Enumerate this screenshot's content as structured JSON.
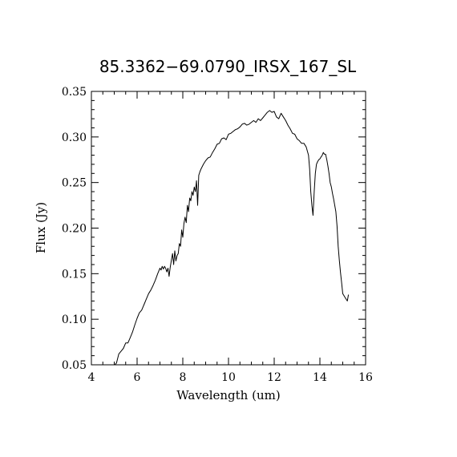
{
  "chart_data": {
    "type": "line",
    "title": "85.3362−69.0790_IRSX_167_SL",
    "xlabel": "Wavelength (um)",
    "ylabel": "Flux (Jy)",
    "xlim": [
      4,
      16
    ],
    "ylim": [
      0.05,
      0.35
    ],
    "xticks": [
      4,
      6,
      8,
      10,
      12,
      14,
      16
    ],
    "xtick_labels": [
      "4",
      "6",
      "8",
      "10",
      "12",
      "14",
      "16"
    ],
    "yticks": [
      0.05,
      0.1,
      0.15,
      0.2,
      0.25,
      0.3,
      0.35
    ],
    "ytick_labels": [
      "0.05",
      "0.10",
      "0.15",
      "0.20",
      "0.25",
      "0.30",
      "0.35"
    ],
    "grid": false,
    "line_color": "#000000",
    "series": [
      {
        "x": [
          5.03,
          5.1,
          5.2,
          5.3,
          5.4,
          5.5,
          5.6,
          5.7,
          5.8,
          5.9,
          6.0,
          6.1,
          6.2,
          6.3,
          6.4,
          6.5,
          6.6,
          6.7,
          6.8,
          6.9,
          7.0,
          7.05,
          7.1,
          7.15,
          7.2,
          7.25,
          7.3,
          7.35,
          7.4,
          7.45,
          7.5,
          7.55,
          7.6,
          7.65,
          7.7,
          7.75,
          7.8,
          7.85,
          7.9,
          7.95,
          8.0,
          8.05,
          8.1,
          8.15,
          8.2,
          8.25,
          8.3,
          8.35,
          8.4,
          8.45,
          8.5,
          8.55,
          8.6,
          8.65,
          8.7,
          8.75,
          8.8,
          8.9,
          9.0,
          9.1,
          9.2,
          9.3,
          9.4,
          9.5,
          9.6,
          9.7,
          9.8,
          9.9,
          10.0,
          10.1,
          10.2,
          10.3,
          10.4,
          10.5,
          10.6,
          10.7,
          10.8,
          10.9,
          11.0,
          11.1,
          11.2,
          11.3,
          11.4,
          11.5,
          11.6,
          11.7,
          11.8,
          11.9,
          12.0,
          12.1,
          12.2,
          12.3,
          12.4,
          12.5,
          12.6,
          12.7,
          12.8,
          12.9,
          13.0,
          13.1,
          13.2,
          13.3,
          13.4,
          13.5,
          13.55,
          13.6,
          13.65,
          13.7,
          13.75,
          13.8,
          13.85,
          13.9,
          13.95,
          14.0,
          14.05,
          14.1,
          14.15,
          14.2,
          14.25,
          14.3,
          14.35,
          14.4,
          14.45,
          14.5,
          14.55,
          14.6,
          14.65,
          14.7,
          14.75,
          14.8,
          14.85,
          14.9,
          14.95,
          15.0,
          15.1,
          15.2,
          15.25
        ],
        "y": [
          0.05,
          0.052,
          0.062,
          0.065,
          0.068,
          0.074,
          0.074,
          0.08,
          0.086,
          0.094,
          0.101,
          0.107,
          0.11,
          0.116,
          0.122,
          0.128,
          0.132,
          0.137,
          0.143,
          0.15,
          0.156,
          0.154,
          0.158,
          0.155,
          0.158,
          0.156,
          0.152,
          0.156,
          0.147,
          0.157,
          0.165,
          0.172,
          0.16,
          0.175,
          0.164,
          0.17,
          0.172,
          0.183,
          0.18,
          0.198,
          0.19,
          0.205,
          0.212,
          0.206,
          0.225,
          0.218,
          0.233,
          0.23,
          0.24,
          0.236,
          0.245,
          0.24,
          0.252,
          0.225,
          0.258,
          0.262,
          0.265,
          0.27,
          0.274,
          0.277,
          0.278,
          0.283,
          0.287,
          0.292,
          0.293,
          0.298,
          0.299,
          0.297,
          0.303,
          0.304,
          0.306,
          0.308,
          0.309,
          0.311,
          0.314,
          0.315,
          0.313,
          0.314,
          0.316,
          0.318,
          0.316,
          0.32,
          0.318,
          0.321,
          0.324,
          0.327,
          0.329,
          0.327,
          0.328,
          0.322,
          0.32,
          0.326,
          0.322,
          0.318,
          0.313,
          0.309,
          0.304,
          0.303,
          0.298,
          0.296,
          0.293,
          0.293,
          0.289,
          0.28,
          0.265,
          0.24,
          0.225,
          0.214,
          0.24,
          0.26,
          0.27,
          0.273,
          0.275,
          0.276,
          0.278,
          0.28,
          0.283,
          0.281,
          0.281,
          0.275,
          0.268,
          0.26,
          0.25,
          0.245,
          0.238,
          0.232,
          0.225,
          0.218,
          0.202,
          0.18,
          0.165,
          0.152,
          0.14,
          0.128,
          0.124,
          0.12,
          0.127
        ]
      }
    ]
  }
}
